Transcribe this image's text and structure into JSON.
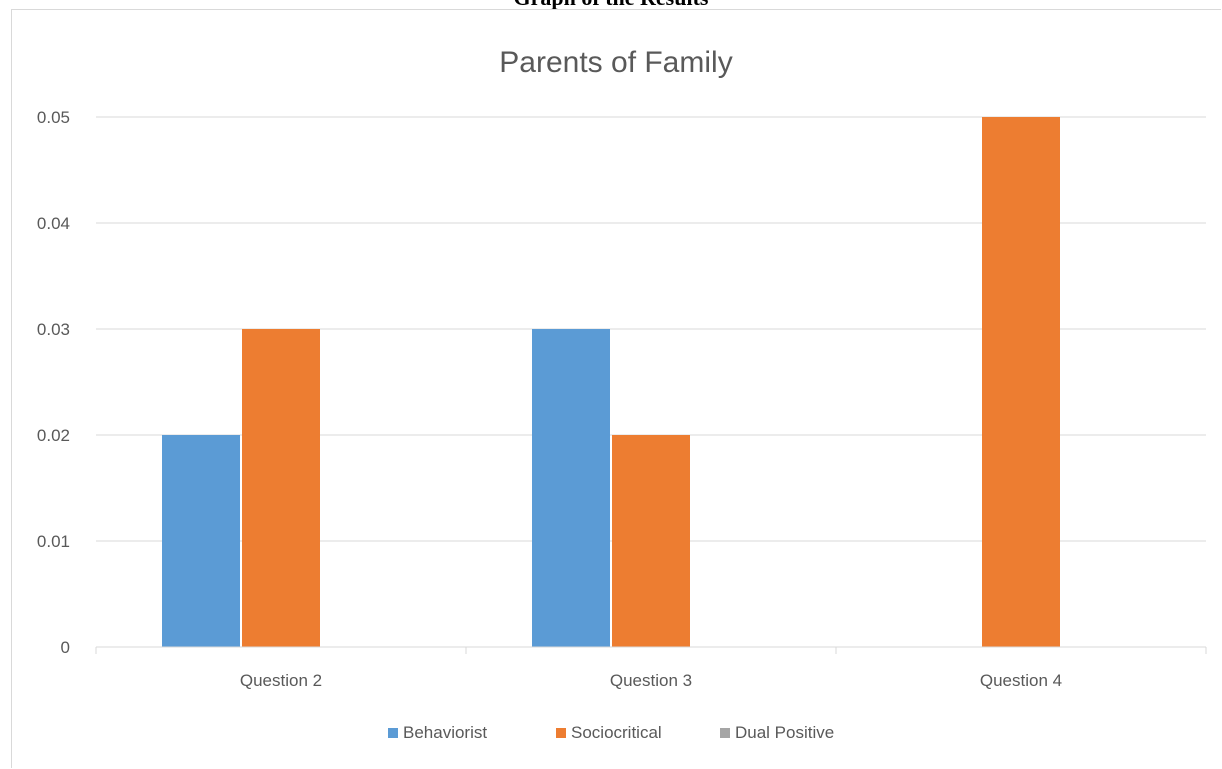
{
  "page": {
    "heading": "Graph of the Results"
  },
  "chart_data": {
    "type": "bar",
    "title": "Parents of Family",
    "categories": [
      "Question 2",
      "Question 3",
      "Question 4"
    ],
    "series": [
      {
        "name": "Behaviorist",
        "color": "#5b9bd5",
        "values": [
          0.02,
          0.03,
          0
        ]
      },
      {
        "name": "Sociocritical",
        "color": "#ed7d31",
        "values": [
          0.03,
          0.02,
          0.05
        ]
      },
      {
        "name": "Dual Positive",
        "color": "#a5a5a5",
        "values": [
          0,
          0,
          0
        ]
      }
    ],
    "y_ticks": [
      "0",
      "0.01",
      "0.02",
      "0.03",
      "0.04",
      "0.05"
    ],
    "ylim": [
      0,
      0.05
    ],
    "grid": true,
    "legend_position": "bottom"
  }
}
